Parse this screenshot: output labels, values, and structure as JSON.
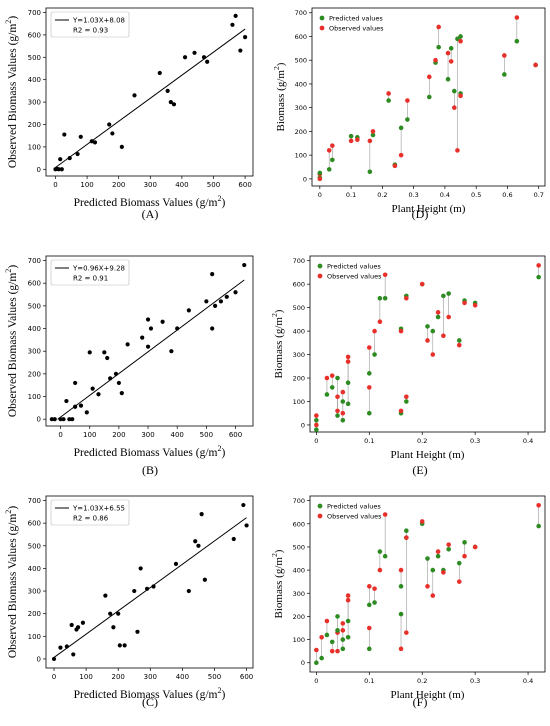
{
  "chart_data": [
    {
      "panel": "(A)",
      "type": "scatter",
      "xlabel": "Predicted Biomass Values",
      "xunit": "(g/m2)",
      "ylabel": "Observed Biomass Values",
      "yunit": "(g/m2)",
      "xlim": [
        -30,
        625
      ],
      "ylim": [
        -30,
        720
      ],
      "xticks": [
        0,
        100,
        200,
        300,
        400,
        500,
        600
      ],
      "yticks": [
        0,
        100,
        200,
        300,
        400,
        500,
        600,
        700
      ],
      "legend": {
        "equation": "Y=1.03X+8.08",
        "r2": "R2 = 0.93",
        "placement": "top-left"
      },
      "fit": {
        "slope": 1.03,
        "intercept": 8.08,
        "xmin": 0,
        "xmax": 600
      },
      "points": [
        [
          0,
          0
        ],
        [
          5,
          2
        ],
        [
          10,
          0
        ],
        [
          15,
          45
        ],
        [
          20,
          0
        ],
        [
          28,
          155
        ],
        [
          45,
          50
        ],
        [
          70,
          68
        ],
        [
          80,
          145
        ],
        [
          115,
          125
        ],
        [
          125,
          120
        ],
        [
          170,
          200
        ],
        [
          180,
          160
        ],
        [
          210,
          100
        ],
        [
          250,
          330
        ],
        [
          330,
          430
        ],
        [
          355,
          350
        ],
        [
          365,
          300
        ],
        [
          375,
          290
        ],
        [
          410,
          500
        ],
        [
          440,
          520
        ],
        [
          470,
          500
        ],
        [
          480,
          480
        ],
        [
          560,
          645
        ],
        [
          570,
          685
        ],
        [
          585,
          530
        ],
        [
          600,
          590
        ]
      ],
      "point_color": "#000000",
      "fit_color": "#000000"
    },
    {
      "panel": "(B)",
      "type": "scatter",
      "xlabel": "Predicted Biomass Values",
      "xunit": "(g/m2)",
      "ylabel": "Observed Biomass Values",
      "yunit": "(g/m2)",
      "xlim": [
        -50,
        660
      ],
      "ylim": [
        -30,
        720
      ],
      "xticks": [
        0,
        100,
        200,
        300,
        400,
        500,
        600
      ],
      "yticks": [
        0,
        100,
        200,
        300,
        400,
        500,
        600,
        700
      ],
      "legend": {
        "equation": "Y=0.96X+9.28",
        "r2": "R2 = 0.91",
        "placement": "top-left"
      },
      "fit": {
        "slope": 0.96,
        "intercept": 9.28,
        "xmin": -10,
        "xmax": 630
      },
      "points": [
        [
          -30,
          0
        ],
        [
          -20,
          0
        ],
        [
          0,
          0
        ],
        [
          10,
          0
        ],
        [
          20,
          80
        ],
        [
          30,
          0
        ],
        [
          40,
          0
        ],
        [
          50,
          160
        ],
        [
          50,
          55
        ],
        [
          70,
          60
        ],
        [
          90,
          30
        ],
        [
          100,
          295
        ],
        [
          110,
          135
        ],
        [
          130,
          110
        ],
        [
          150,
          295
        ],
        [
          160,
          270
        ],
        [
          170,
          180
        ],
        [
          190,
          200
        ],
        [
          200,
          160
        ],
        [
          210,
          115
        ],
        [
          230,
          330
        ],
        [
          280,
          360
        ],
        [
          300,
          320
        ],
        [
          300,
          440
        ],
        [
          310,
          400
        ],
        [
          350,
          430
        ],
        [
          380,
          300
        ],
        [
          400,
          400
        ],
        [
          440,
          480
        ],
        [
          500,
          520
        ],
        [
          520,
          640
        ],
        [
          520,
          400
        ],
        [
          530,
          500
        ],
        [
          550,
          520
        ],
        [
          570,
          540
        ],
        [
          600,
          560
        ],
        [
          630,
          680
        ]
      ],
      "point_color": "#000000",
      "fit_color": "#000000"
    },
    {
      "panel": "(C)",
      "type": "scatter",
      "xlabel": "Predicted Biomass Values",
      "xunit": "(g/m2)",
      "ylabel": "Observed Biomass Values",
      "yunit": "(g/m2)",
      "xlim": [
        -25,
        620
      ],
      "ylim": [
        -40,
        720
      ],
      "xticks": [
        0,
        100,
        200,
        300,
        400,
        500,
        600
      ],
      "yticks": [
        0,
        100,
        200,
        300,
        400,
        500,
        600,
        700
      ],
      "legend": {
        "equation": "Y=1.03X+6.55",
        "r2": "R2 = 0.86",
        "placement": "top-left"
      },
      "fit": {
        "slope": 1.03,
        "intercept": 6.55,
        "xmin": 0,
        "xmax": 600
      },
      "points": [
        [
          0,
          0
        ],
        [
          20,
          50
        ],
        [
          40,
          55
        ],
        [
          55,
          150
        ],
        [
          60,
          20
        ],
        [
          70,
          130
        ],
        [
          75,
          140
        ],
        [
          90,
          160
        ],
        [
          160,
          280
        ],
        [
          175,
          200
        ],
        [
          185,
          140
        ],
        [
          200,
          200
        ],
        [
          205,
          60
        ],
        [
          220,
          60
        ],
        [
          250,
          300
        ],
        [
          260,
          120
        ],
        [
          270,
          400
        ],
        [
          290,
          310
        ],
        [
          310,
          320
        ],
        [
          380,
          420
        ],
        [
          420,
          300
        ],
        [
          440,
          520
        ],
        [
          450,
          500
        ],
        [
          460,
          640
        ],
        [
          470,
          350
        ],
        [
          560,
          530
        ],
        [
          590,
          680
        ],
        [
          600,
          590
        ]
      ],
      "point_color": "#000000",
      "fit_color": "#000000"
    },
    {
      "panel": "(D)",
      "type": "scatter",
      "xlabel": "Plant Height (m)",
      "ylabel": "Biomass",
      "yunit": "(g/m2)",
      "xlim": [
        -0.025,
        0.72
      ],
      "ylim": [
        -30,
        720
      ],
      "xticks": [
        0.0,
        0.1,
        0.2,
        0.3,
        0.4,
        0.5,
        0.6,
        0.7
      ],
      "yticks": [
        0,
        100,
        200,
        300,
        400,
        500,
        600,
        700
      ],
      "legend": {
        "series": [
          "Predicted values",
          "Observed values"
        ],
        "placement": "top-left"
      },
      "series": [
        {
          "name": "Predicted values",
          "color": "#2e8b22"
        },
        {
          "name": "Observed values",
          "color": "#e8302a"
        }
      ],
      "pairs": [
        [
          0.0,
          5,
          20
        ],
        [
          0.0,
          25,
          0
        ],
        [
          0.03,
          40,
          120
        ],
        [
          0.04,
          80,
          140
        ],
        [
          0.1,
          180,
          160
        ],
        [
          0.12,
          175,
          165
        ],
        [
          0.16,
          30,
          160
        ],
        [
          0.17,
          185,
          200
        ],
        [
          0.22,
          330,
          360
        ],
        [
          0.24,
          60,
          55
        ],
        [
          0.26,
          215,
          100
        ],
        [
          0.28,
          250,
          330
        ],
        [
          0.35,
          345,
          430
        ],
        [
          0.37,
          490,
          500
        ],
        [
          0.38,
          555,
          640
        ],
        [
          0.41,
          420,
          530
        ],
        [
          0.42,
          550,
          495
        ],
        [
          0.43,
          370,
          300
        ],
        [
          0.44,
          590,
          120
        ],
        [
          0.45,
          600,
          580
        ],
        [
          0.45,
          360,
          350
        ],
        [
          0.59,
          440,
          520
        ],
        [
          0.63,
          580,
          680
        ],
        [
          0.69,
          480,
          480
        ]
      ]
    },
    {
      "panel": "(E)",
      "type": "scatter",
      "xlabel": "Plant Height (m)",
      "ylabel": "Biomass",
      "yunit": "(g/m2)",
      "xlim": [
        -0.012,
        0.432
      ],
      "ylim": [
        -30,
        720
      ],
      "xticks": [
        0.0,
        0.1,
        0.2,
        0.3,
        0.4
      ],
      "yticks": [
        0,
        100,
        200,
        300,
        400,
        500,
        600,
        700
      ],
      "legend": {
        "series": [
          "Predicted values",
          "Observed values"
        ],
        "placement": "top-left"
      },
      "series": [
        {
          "name": "Predicted values",
          "color": "#2e8b22"
        },
        {
          "name": "Observed values",
          "color": "#e8302a"
        }
      ],
      "pairs": [
        [
          0.0,
          -20,
          0
        ],
        [
          0.0,
          20,
          40
        ],
        [
          0.02,
          130,
          200
        ],
        [
          0.03,
          160,
          210
        ],
        [
          0.04,
          40,
          120
        ],
        [
          0.04,
          200,
          60
        ],
        [
          0.05,
          100,
          50
        ],
        [
          0.05,
          20,
          140
        ],
        [
          0.06,
          180,
          290
        ],
        [
          0.06,
          90,
          270
        ],
        [
          0.1,
          220,
          330
        ],
        [
          0.1,
          50,
          160
        ],
        [
          0.11,
          300,
          400
        ],
        [
          0.12,
          540,
          440
        ],
        [
          0.13,
          540,
          640
        ],
        [
          0.16,
          410,
          400
        ],
        [
          0.16,
          50,
          60
        ],
        [
          0.17,
          100,
          120
        ],
        [
          0.17,
          550,
          540
        ],
        [
          0.2,
          600,
          600
        ],
        [
          0.21,
          420,
          360
        ],
        [
          0.22,
          400,
          300
        ],
        [
          0.23,
          460,
          480
        ],
        [
          0.24,
          550,
          380
        ],
        [
          0.25,
          560,
          460
        ],
        [
          0.27,
          360,
          340
        ],
        [
          0.28,
          530,
          520
        ],
        [
          0.3,
          520,
          510
        ],
        [
          0.42,
          630,
          680
        ]
      ]
    },
    {
      "panel": "(F)",
      "type": "scatter",
      "xlabel": "Plant Height (m)",
      "ylabel": "Biomass",
      "yunit": "(g/m2)",
      "xlim": [
        -0.012,
        0.432
      ],
      "ylim": [
        -40,
        720
      ],
      "xticks": [
        0.0,
        0.1,
        0.2,
        0.3,
        0.4
      ],
      "yticks": [
        0,
        100,
        200,
        300,
        400,
        500,
        600,
        700
      ],
      "legend": {
        "series": [
          "Predicted values",
          "Observed values"
        ],
        "placement": "top-left"
      },
      "series": [
        {
          "name": "Predicted values",
          "color": "#2e8b22"
        },
        {
          "name": "Observed values",
          "color": "#e8302a"
        }
      ],
      "pairs": [
        [
          0.0,
          0,
          55
        ],
        [
          0.01,
          20,
          110
        ],
        [
          0.02,
          120,
          180
        ],
        [
          0.03,
          90,
          50
        ],
        [
          0.04,
          200,
          130
        ],
        [
          0.04,
          140,
          50
        ],
        [
          0.05,
          60,
          140
        ],
        [
          0.05,
          100,
          170
        ],
        [
          0.06,
          180,
          290
        ],
        [
          0.06,
          110,
          270
        ],
        [
          0.1,
          250,
          330
        ],
        [
          0.1,
          60,
          150
        ],
        [
          0.11,
          260,
          320
        ],
        [
          0.12,
          480,
          400
        ],
        [
          0.13,
          460,
          640
        ],
        [
          0.16,
          330,
          400
        ],
        [
          0.16,
          210,
          60
        ],
        [
          0.17,
          570,
          130
        ],
        [
          0.17,
          540,
          540
        ],
        [
          0.2,
          600,
          610
        ],
        [
          0.21,
          450,
          330
        ],
        [
          0.22,
          400,
          290
        ],
        [
          0.23,
          460,
          480
        ],
        [
          0.24,
          400,
          390
        ],
        [
          0.25,
          490,
          510
        ],
        [
          0.27,
          430,
          350
        ],
        [
          0.28,
          520,
          460
        ],
        [
          0.3,
          500,
          500
        ],
        [
          0.42,
          590,
          680
        ]
      ]
    }
  ]
}
